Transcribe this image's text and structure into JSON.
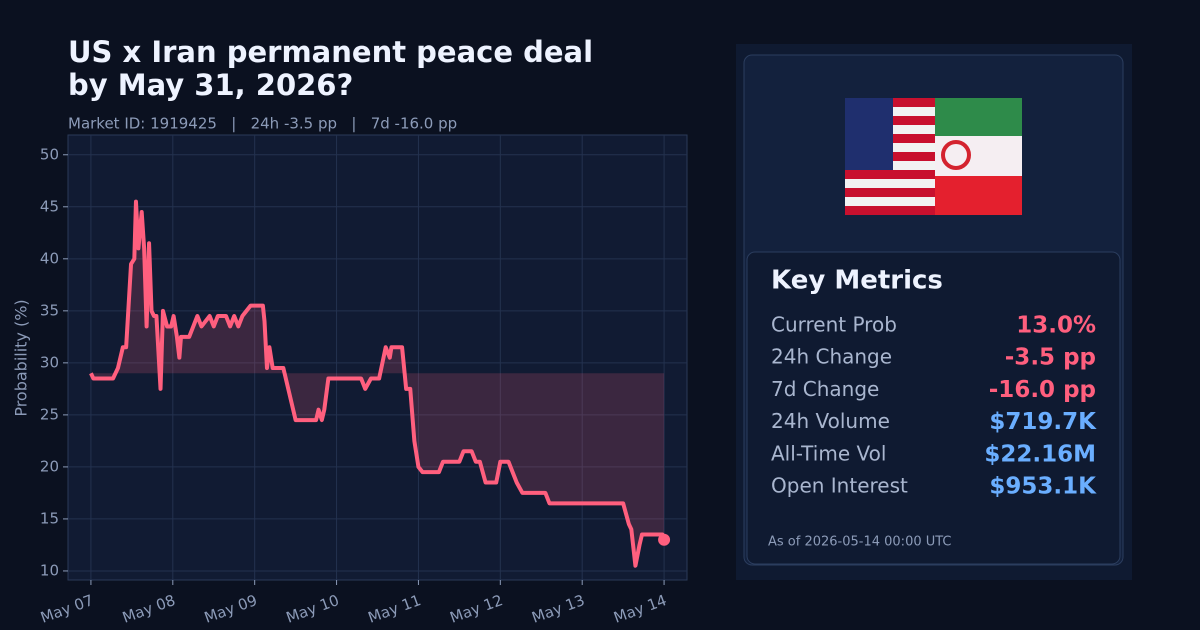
{
  "chart_data": {
    "type": "line",
    "title": [
      "US x Iran permanent peace deal",
      "by May 31, 2026?"
    ],
    "subtitle": "Market ID: 1919425   |   24h -3.5 pp   |   7d -16.0 pp",
    "ylabel": "Probability (%)",
    "color": "#ff5f7e",
    "x": [
      0,
      0.03,
      0.27,
      0.33,
      0.39,
      0.43,
      0.49,
      0.53,
      0.55,
      0.58,
      0.62,
      0.65,
      0.68,
      0.71,
      0.74,
      0.77,
      0.8,
      0.85,
      0.88,
      0.93,
      0.98,
      1.01,
      1.05,
      1.08,
      1.1,
      1.2,
      1.25,
      1.3,
      1.35,
      1.45,
      1.5,
      1.55,
      1.65,
      1.7,
      1.75,
      1.8,
      1.85,
      1.95,
      2.1,
      2.12,
      2.15,
      2.18,
      2.22,
      2.35,
      2.5,
      2.75,
      2.78,
      2.82,
      2.85,
      2.9,
      3.3,
      3.35,
      3.42,
      3.52,
      3.6,
      3.65,
      3.67,
      3.8,
      3.85,
      3.9,
      3.95,
      4.0,
      4.05,
      4.25,
      4.3,
      4.5,
      4.55,
      4.65,
      4.7,
      4.75,
      4.82,
      4.95,
      5.0,
      5.1,
      5.15,
      5.2,
      5.27,
      5.55,
      5.6,
      6.5,
      6.57,
      6.6,
      6.65,
      6.7,
      6.73,
      6.98,
      7.0
    ],
    "values": [
      29,
      28.5,
      28.5,
      29.5,
      31.5,
      31.5,
      39.5,
      40,
      45.5,
      41,
      44.5,
      41,
      33.5,
      41.5,
      35,
      34.5,
      34.5,
      27.5,
      35,
      33.5,
      33.5,
      34.5,
      32.5,
      30.5,
      32.5,
      32.5,
      33.5,
      34.5,
      33.5,
      34.5,
      33.5,
      34.5,
      34.5,
      33.5,
      34.5,
      33.5,
      34.5,
      35.5,
      35.5,
      34,
      29.5,
      31.5,
      29.5,
      29.5,
      24.5,
      24.5,
      25.5,
      24.5,
      25.5,
      28.5,
      28.5,
      27.5,
      28.5,
      28.5,
      31.5,
      30.5,
      31.5,
      31.5,
      27.5,
      27.5,
      22.5,
      20,
      19.5,
      19.5,
      20.5,
      20.5,
      21.5,
      21.5,
      20.5,
      20.5,
      18.5,
      18.5,
      20.5,
      20.5,
      19.5,
      18.5,
      17.5,
      17.5,
      16.5,
      16.5,
      14.5,
      14,
      10.5,
      12.5,
      13.5,
      13.5,
      13
    ],
    "xlim": [
      -0.28,
      7.28
    ],
    "xticks": [
      {
        "value": 0,
        "label": "May 07"
      },
      {
        "value": 1,
        "label": "May 08"
      },
      {
        "value": 2,
        "label": "May 09"
      },
      {
        "value": 3,
        "label": "May 10"
      },
      {
        "value": 4,
        "label": "May 11"
      },
      {
        "value": 5,
        "label": "May 12"
      },
      {
        "value": 6,
        "label": "May 13"
      },
      {
        "value": 7,
        "label": "May 14"
      }
    ],
    "ylim": [
      9.13,
      51.9
    ],
    "yticks": [
      10,
      15,
      20,
      25,
      30,
      35,
      40,
      45,
      50
    ],
    "grid": true
  },
  "panel": {
    "heading": "Key Metrics",
    "metrics": [
      {
        "label": "Current Prob",
        "value": "13.0%",
        "color": "#ff5f7e"
      },
      {
        "label": "24h Change",
        "value": "-3.5 pp",
        "color": "#ff5f7e"
      },
      {
        "label": "7d Change",
        "value": "-16.0 pp",
        "color": "#ff5f7e"
      },
      {
        "label": "24h Volume",
        "value": "$719.7K",
        "color": "#6aaeff"
      },
      {
        "label": "All-Time Vol",
        "value": "$22.16M",
        "color": "#6aaeff"
      },
      {
        "label": "Open Interest",
        "value": "$953.1K",
        "color": "#6aaeff"
      }
    ],
    "footnote": "As of 2026-05-14 00:00 UTC"
  }
}
